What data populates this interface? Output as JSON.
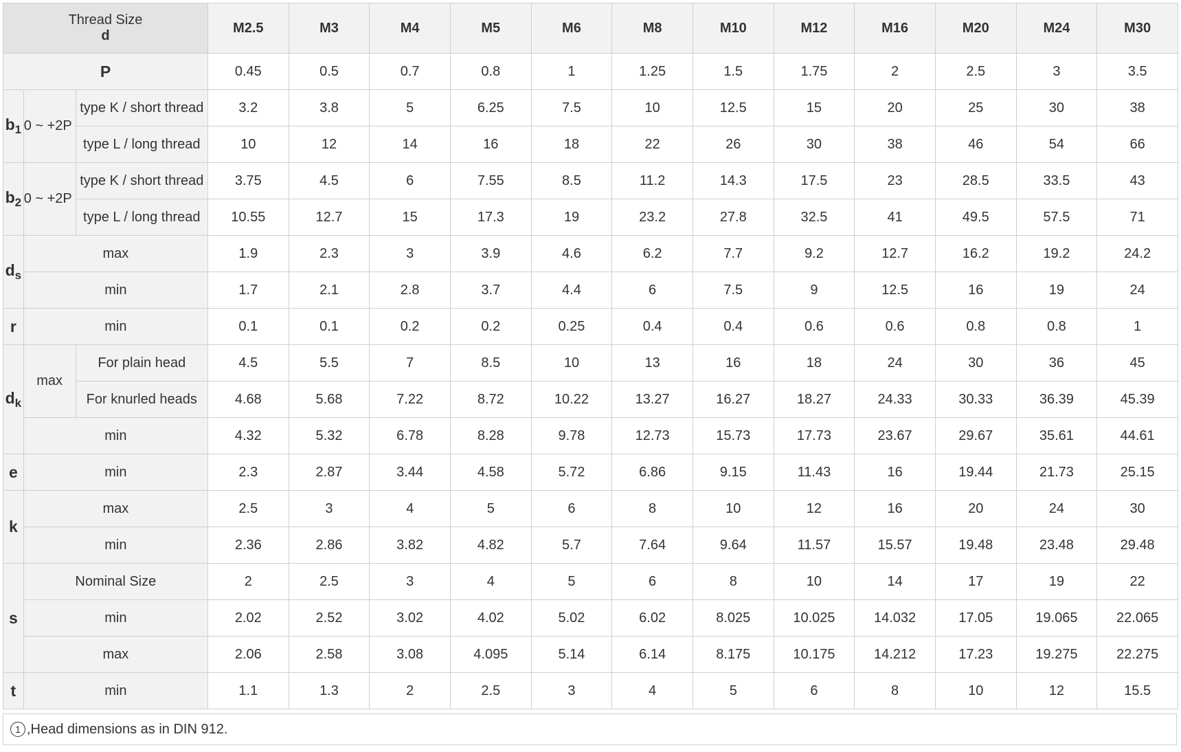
{
  "header": {
    "label_line1": "Thread Size",
    "label_line2": "d",
    "sizes": [
      "M2.5",
      "M3",
      "M4",
      "M5",
      "M6",
      "M8",
      "M10",
      "M12",
      "M16",
      "M20",
      "M24",
      "M30"
    ]
  },
  "rows": {
    "P": {
      "sym": "P",
      "values": [
        "0.45",
        "0.5",
        "0.7",
        "0.8",
        "1",
        "1.25",
        "1.5",
        "1.75",
        "2",
        "2.5",
        "3",
        "3.5"
      ]
    },
    "b1": {
      "sym": "b",
      "sub": "1",
      "range": "0 ~ +2P",
      "k": {
        "label": "type K / short thread",
        "values": [
          "3.2",
          "3.8",
          "5",
          "6.25",
          "7.5",
          "10",
          "12.5",
          "15",
          "20",
          "25",
          "30",
          "38"
        ]
      },
      "l": {
        "label": "type L / long thread",
        "values": [
          "10",
          "12",
          "14",
          "16",
          "18",
          "22",
          "26",
          "30",
          "38",
          "46",
          "54",
          "66"
        ]
      }
    },
    "b2": {
      "sym": "b",
      "sub": "2",
      "range": "0 ~ +2P",
      "k": {
        "label": "type K / short thread",
        "values": [
          "3.75",
          "4.5",
          "6",
          "7.55",
          "8.5",
          "11.2",
          "14.3",
          "17.5",
          "23",
          "28.5",
          "33.5",
          "43"
        ]
      },
      "l": {
        "label": "type L / long thread",
        "values": [
          "10.55",
          "12.7",
          "15",
          "17.3",
          "19",
          "23.2",
          "27.8",
          "32.5",
          "41",
          "49.5",
          "57.5",
          "71"
        ]
      }
    },
    "ds": {
      "sym": "d",
      "sub": "s",
      "max": {
        "label": "max",
        "values": [
          "1.9",
          "2.3",
          "3",
          "3.9",
          "4.6",
          "6.2",
          "7.7",
          "9.2",
          "12.7",
          "16.2",
          "19.2",
          "24.2"
        ]
      },
      "min": {
        "label": "min",
        "values": [
          "1.7",
          "2.1",
          "2.8",
          "3.7",
          "4.4",
          "6",
          "7.5",
          "9",
          "12.5",
          "16",
          "19",
          "24"
        ]
      }
    },
    "r": {
      "sym": "r",
      "min": {
        "label": "min",
        "values": [
          "0.1",
          "0.1",
          "0.2",
          "0.2",
          "0.25",
          "0.4",
          "0.4",
          "0.6",
          "0.6",
          "0.8",
          "0.8",
          "1"
        ]
      }
    },
    "dk": {
      "sym": "d",
      "sub": "k",
      "max_label": "max",
      "plain": {
        "label": "For plain head",
        "values": [
          "4.5",
          "5.5",
          "7",
          "8.5",
          "10",
          "13",
          "16",
          "18",
          "24",
          "30",
          "36",
          "45"
        ]
      },
      "knurled": {
        "label": "For knurled heads",
        "values": [
          "4.68",
          "5.68",
          "7.22",
          "8.72",
          "10.22",
          "13.27",
          "16.27",
          "18.27",
          "24.33",
          "30.33",
          "36.39",
          "45.39"
        ]
      },
      "min": {
        "label": "min",
        "values": [
          "4.32",
          "5.32",
          "6.78",
          "8.28",
          "9.78",
          "12.73",
          "15.73",
          "17.73",
          "23.67",
          "29.67",
          "35.61",
          "44.61"
        ]
      }
    },
    "e": {
      "sym": "e",
      "min": {
        "label": "min",
        "values": [
          "2.3",
          "2.87",
          "3.44",
          "4.58",
          "5.72",
          "6.86",
          "9.15",
          "11.43",
          "16",
          "19.44",
          "21.73",
          "25.15"
        ]
      }
    },
    "k": {
      "sym": "k",
      "max": {
        "label": "max",
        "values": [
          "2.5",
          "3",
          "4",
          "5",
          "6",
          "8",
          "10",
          "12",
          "16",
          "20",
          "24",
          "30"
        ]
      },
      "min": {
        "label": "min",
        "values": [
          "2.36",
          "2.86",
          "3.82",
          "4.82",
          "5.7",
          "7.64",
          "9.64",
          "11.57",
          "15.57",
          "19.48",
          "23.48",
          "29.48"
        ]
      }
    },
    "s": {
      "sym": "s",
      "nominal": {
        "label": "Nominal Size",
        "values": [
          "2",
          "2.5",
          "3",
          "4",
          "5",
          "6",
          "8",
          "10",
          "14",
          "17",
          "19",
          "22"
        ]
      },
      "min": {
        "label": "min",
        "values": [
          "2.02",
          "2.52",
          "3.02",
          "4.02",
          "5.02",
          "6.02",
          "8.025",
          "10.025",
          "14.032",
          "17.05",
          "19.065",
          "22.065"
        ]
      },
      "max": {
        "label": "max",
        "values": [
          "2.06",
          "2.58",
          "3.08",
          "4.095",
          "5.14",
          "6.14",
          "8.175",
          "10.175",
          "14.212",
          "17.23",
          "19.275",
          "22.275"
        ]
      }
    },
    "t": {
      "sym": "t",
      "min": {
        "label": "min",
        "values": [
          "1.1",
          "1.3",
          "2",
          "2.5",
          "3",
          "4",
          "5",
          "6",
          "8",
          "10",
          "12",
          "15.5"
        ]
      }
    }
  },
  "footnote": {
    "marker": "1",
    "text": ",Head dimensions as in DIN 912."
  }
}
